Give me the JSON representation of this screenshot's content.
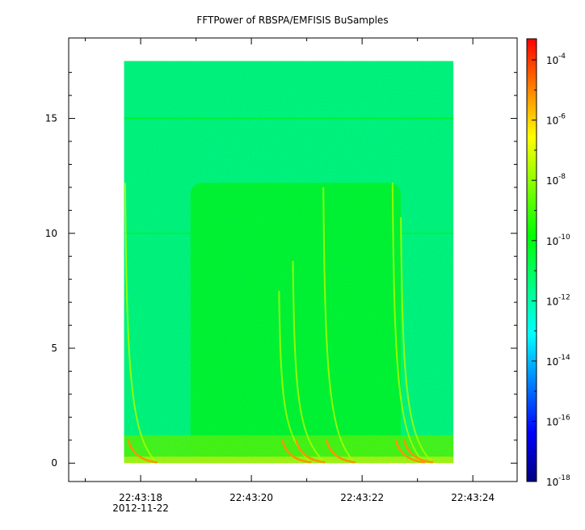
{
  "chart_data": {
    "type": "heatmap",
    "title": "FFTPower of RBSPA/EMFISIS  BuSamples",
    "xlabel": "",
    "ylabel": "",
    "x_ticks": [
      {
        "label": "22:43:18",
        "t": 18
      },
      {
        "label": "22:43:20",
        "t": 20
      },
      {
        "label": "22:43:22",
        "t": 22
      },
      {
        "label": "22:43:24",
        "t": 24
      }
    ],
    "x_minor_ticks": [
      17,
      19,
      21,
      23
    ],
    "x_date_label": "2012-11-22",
    "xlim": [
      16.7,
      24.8
    ],
    "data_x_range": [
      17.7,
      23.65
    ],
    "y_ticks": [
      0,
      5,
      10,
      15
    ],
    "ylim": [
      -0.8,
      18.5
    ],
    "data_y_range": [
      0,
      17.5
    ],
    "colorbar": {
      "scale": "log",
      "range_exp": [
        -18,
        -3.3
      ],
      "ticks": [
        {
          "base": "10",
          "exp": "-4",
          "value": -4
        },
        {
          "base": "10",
          "exp": "-6",
          "value": -6
        },
        {
          "base": "10",
          "exp": "-8",
          "value": -8
        },
        {
          "base": "10",
          "exp": "-10",
          "value": -10
        },
        {
          "base": "10",
          "exp": "-12",
          "value": -12
        },
        {
          "base": "10",
          "exp": "-14",
          "value": -14
        },
        {
          "base": "10",
          "exp": "-16",
          "value": -16
        },
        {
          "base": "10",
          "exp": "-18",
          "value": -18
        }
      ],
      "colormap": [
        "#00007f",
        "#0000ff",
        "#007fff",
        "#00ffff",
        "#00ff7f",
        "#00ff00",
        "#7fff00",
        "#ffff00",
        "#ff7f00",
        "#ff0000"
      ]
    },
    "spectrum": {
      "background_log_power": -11.4,
      "burst_log_power": -10.3,
      "burst_time_range": [
        18.9,
        22.7
      ],
      "burst_freq_max": 12.2,
      "line_freqs": [
        15.0,
        10.0
      ],
      "low_freq_band": {
        "freq_max": 1.0,
        "log_power": -8.7
      }
    },
    "whistlers": [
      {
        "t": 17.72,
        "f_top": 12.2
      },
      {
        "t": 20.5,
        "f_top": 7.5
      },
      {
        "t": 20.75,
        "f_top": 8.8
      },
      {
        "t": 21.3,
        "f_top": 12.0
      },
      {
        "t": 22.55,
        "f_top": 12.2
      },
      {
        "t": 22.7,
        "f_top": 10.7
      }
    ]
  }
}
